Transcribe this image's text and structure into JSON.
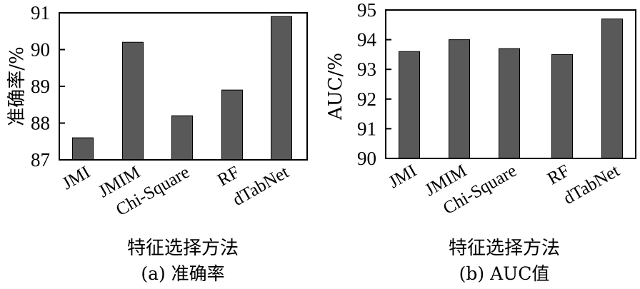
{
  "chart_data": [
    {
      "type": "bar",
      "categories": [
        "JMI",
        "JMIM",
        "Chi-Square",
        "RF",
        "dTabNet"
      ],
      "values": [
        87.6,
        90.2,
        88.2,
        88.9,
        90.9
      ],
      "ylabel": "准确率/%",
      "xlabel": "特征选择方法",
      "caption": "(a) 准确率",
      "ylim": [
        87,
        91
      ],
      "yticks": [
        87,
        88,
        89,
        90,
        91
      ],
      "grid": false,
      "bar_color": "#595959"
    },
    {
      "type": "bar",
      "categories": [
        "JMI",
        "JMIM",
        "Chi-Square",
        "RF",
        "dTabNet"
      ],
      "values": [
        93.6,
        94.0,
        93.7,
        93.5,
        94.7
      ],
      "ylabel": "AUC/%",
      "xlabel": "特征选择方法",
      "caption": "(b) AUC值",
      "ylim": [
        90,
        95
      ],
      "yticks": [
        90,
        91,
        92,
        93,
        94,
        95
      ],
      "grid": false,
      "bar_color": "#595959"
    }
  ]
}
